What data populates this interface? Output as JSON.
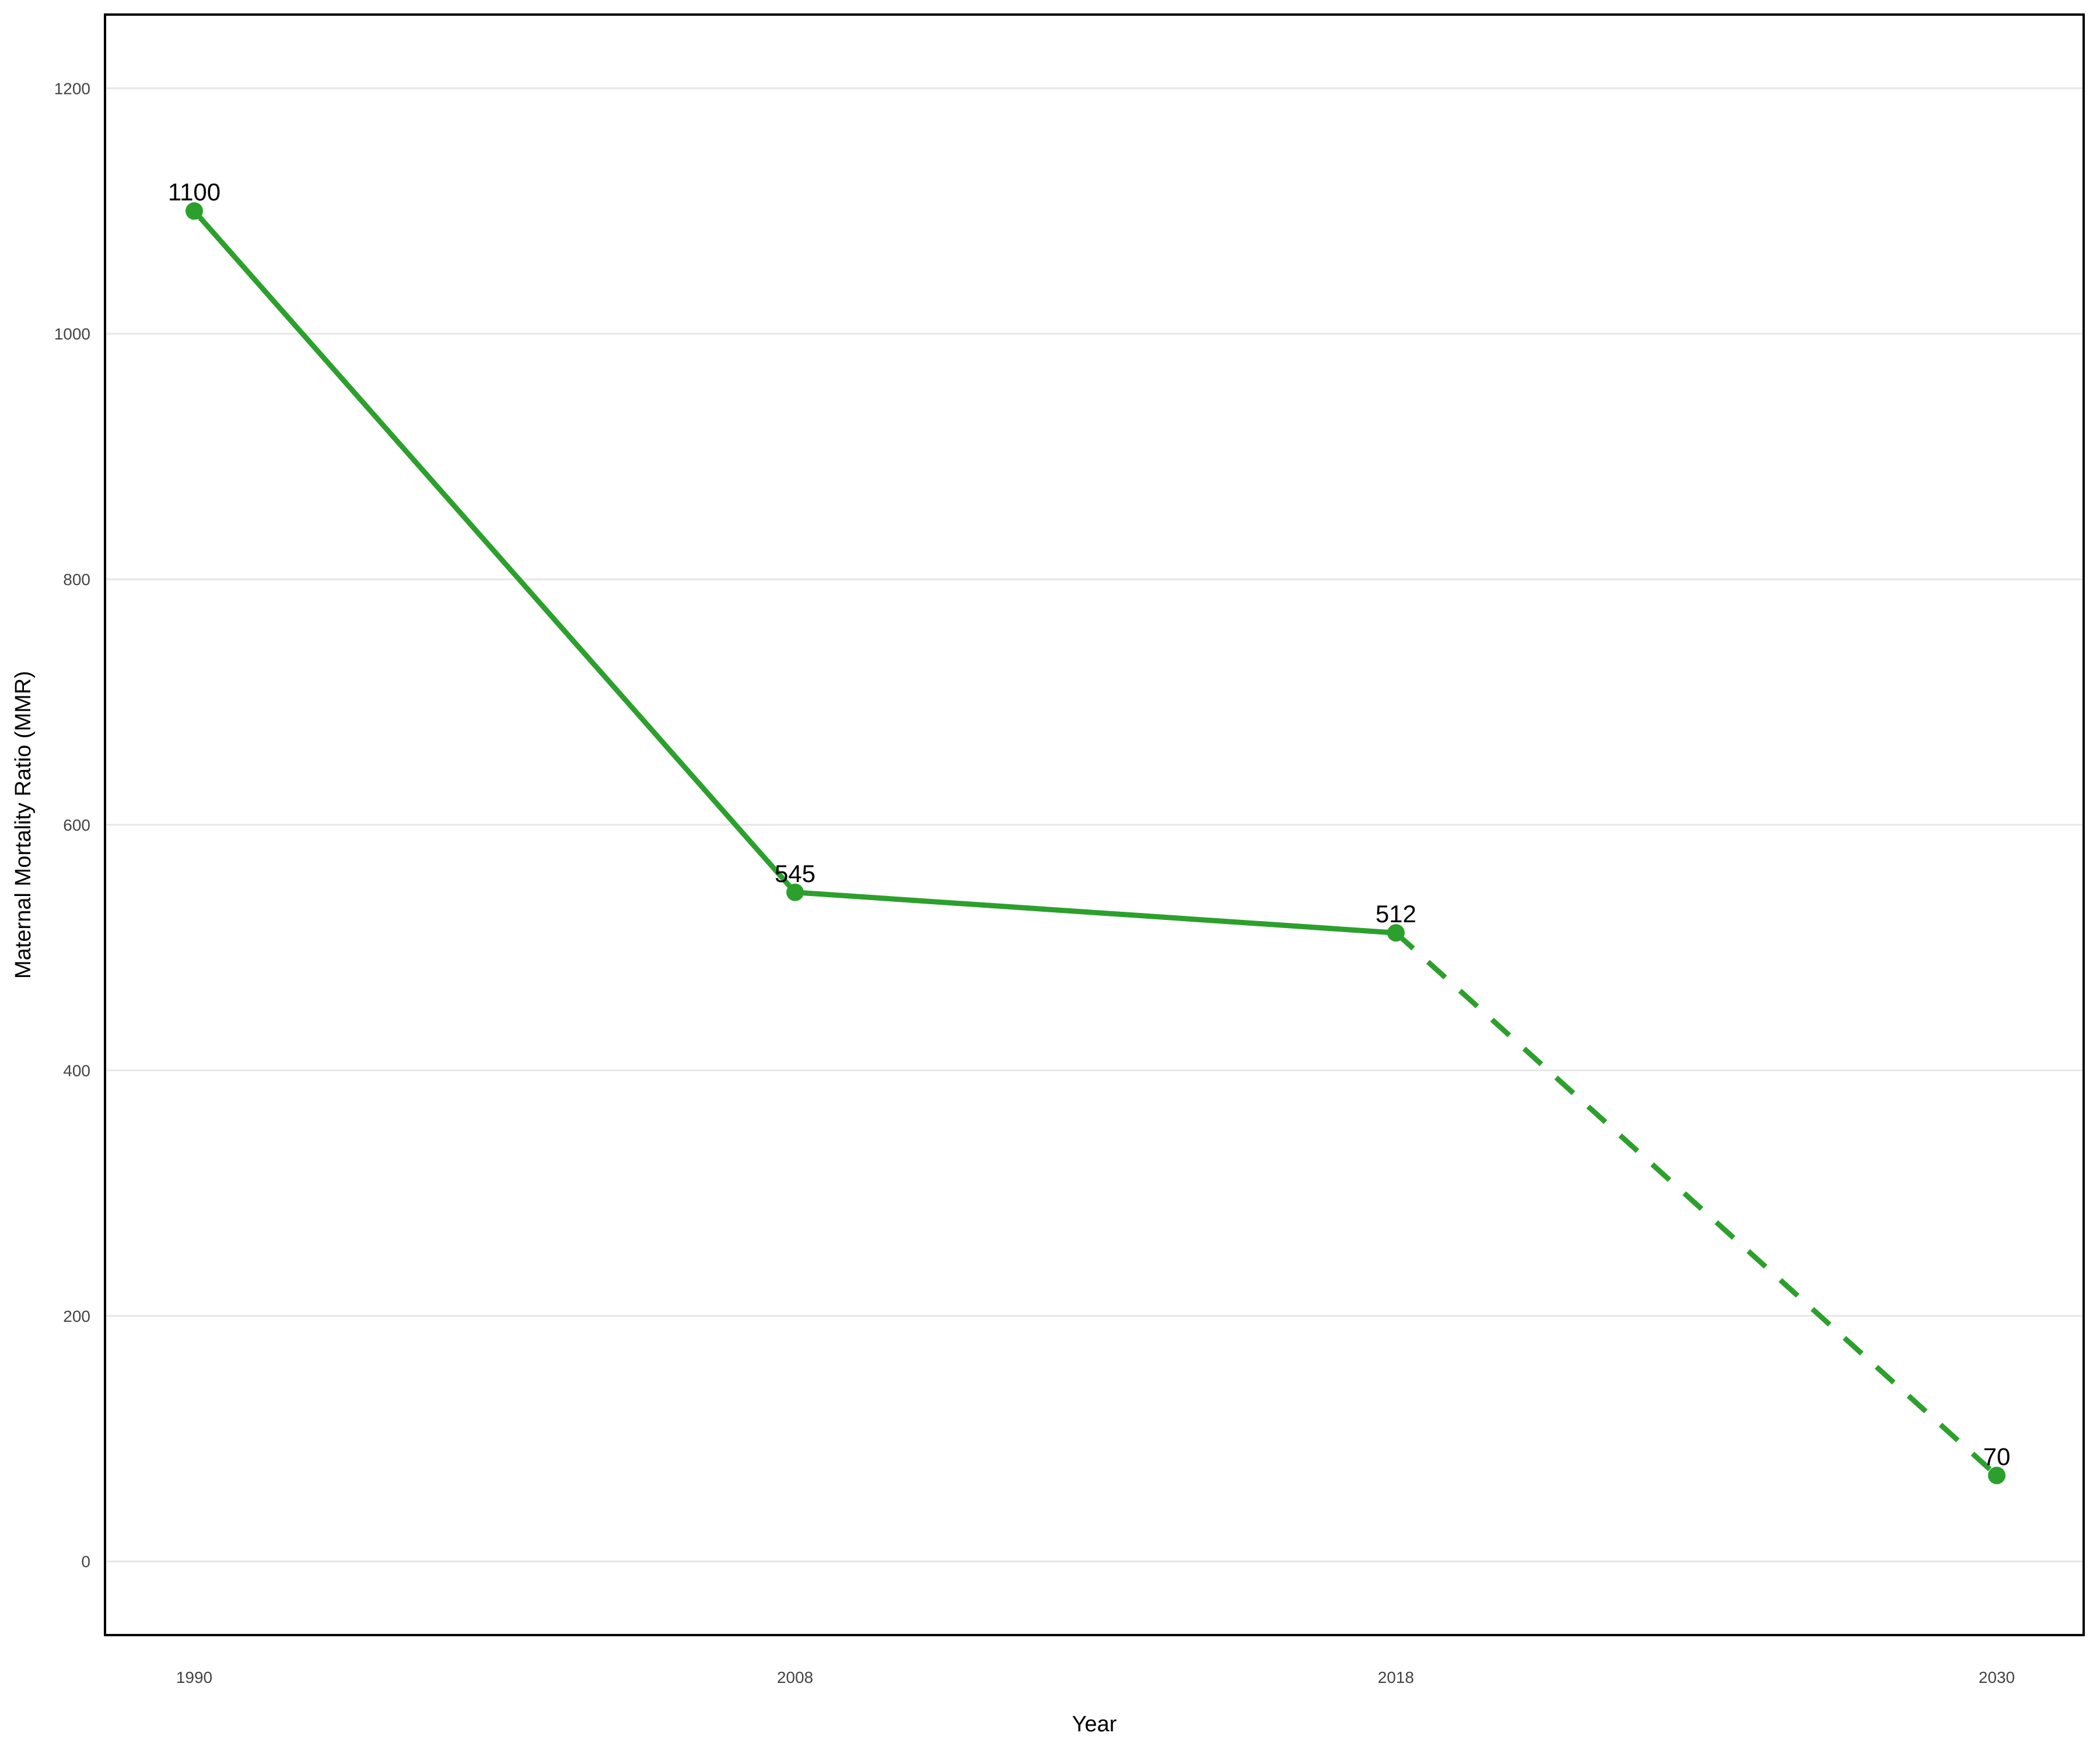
{
  "chart_data": {
    "type": "line",
    "title": "",
    "xlabel": "Year",
    "ylabel": "Maternal Mortality Ratio (MMR)",
    "categories": [
      "1990",
      "2008",
      "2018",
      "2030"
    ],
    "series": [
      {
        "values": [
          1100,
          545,
          512,
          70
        ],
        "line_styles": [
          "solid",
          "solid",
          "dashed"
        ]
      }
    ],
    "ylim": [
      -60,
      1260
    ],
    "yticks": [
      0,
      200,
      400,
      600,
      800,
      1000,
      1200
    ],
    "grid": "horizontal",
    "legend": "none",
    "colors": {
      "series": "#2ca02c",
      "frame": "#000000",
      "grid": "#e6e6e6"
    }
  }
}
